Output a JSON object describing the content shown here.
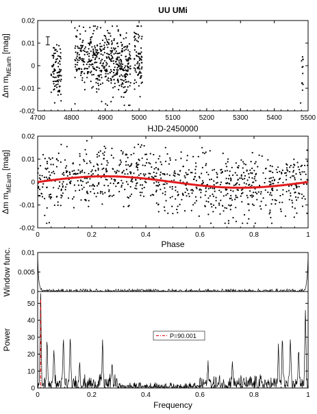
{
  "chart_data": [
    {
      "type": "scatter",
      "title": "UU UMi",
      "xlabel": "HJD-2450000",
      "ylabel": "Δm",
      "ylabel_sub": "MEarth",
      "ylabel_unit": "[mag]",
      "xlim": [
        4700,
        5500
      ],
      "ylim": [
        -0.02,
        0.02
      ],
      "x_ticks": [
        "4700",
        "4800",
        "4900",
        "5000",
        "5100",
        "5200",
        "5300",
        "5400",
        "5500"
      ],
      "y_ticks": [
        "0.02",
        "0.01",
        "0",
        "-0.01",
        "-0.02"
      ],
      "errorbar": {
        "x": 4730,
        "y": 0.011,
        "half_height": 0.0018
      },
      "point_groups": [
        {
          "x_range": [
            4740,
            4770
          ],
          "n": 90,
          "y_mean": -0.002,
          "y_sd": 0.006
        },
        {
          "x_range": [
            4810,
            4870
          ],
          "n": 150,
          "y_mean": 0.004,
          "y_sd": 0.006
        },
        {
          "x_range": [
            4870,
            4930
          ],
          "n": 170,
          "y_mean": 0.001,
          "y_sd": 0.007
        },
        {
          "x_range": [
            4930,
            4975
          ],
          "n": 160,
          "y_mean": -0.001,
          "y_sd": 0.007
        },
        {
          "x_range": [
            4985,
            5010
          ],
          "n": 80,
          "y_mean": 0.003,
          "y_sd": 0.007
        },
        {
          "x_range": [
            5478,
            5486
          ],
          "n": 12,
          "y_mean": -0.002,
          "y_sd": 0.008
        }
      ]
    },
    {
      "type": "scatter",
      "title": "",
      "xlabel": "Phase",
      "ylabel": "Δm",
      "ylabel_sub": "MEarth",
      "ylabel_unit": "[mag]",
      "xlim": [
        0,
        1
      ],
      "ylim": [
        -0.02,
        0.02
      ],
      "x_ticks": [
        "0",
        "0.2",
        "0.4",
        "0.6",
        "0.8",
        "1"
      ],
      "y_ticks": [
        "0.02",
        "0.01",
        "0",
        "-0.01",
        "-0.02"
      ],
      "n_points": 900,
      "y_sd": 0.0065,
      "fit": {
        "amplitude": 0.0025,
        "phase_of_max": 0.25,
        "color": "#e31a1c"
      }
    },
    {
      "type": "line",
      "title": "",
      "xlabel": "",
      "ylabel": "Window func.",
      "xlim": [
        0,
        1
      ],
      "ylim": [
        0,
        0.01
      ],
      "y_ticks": [
        "0.01",
        "0.005",
        "0"
      ],
      "edge_peak": 0.0085,
      "noise_level": 0.0003
    },
    {
      "type": "line",
      "title": "",
      "xlabel": "Frequency",
      "ylabel": "Power",
      "xlim": [
        0,
        1
      ],
      "ylim": [
        0,
        57
      ],
      "x_ticks": [
        "0",
        "0.2",
        "0.4",
        "0.6",
        "0.8",
        "1"
      ],
      "y_ticks": [
        "50",
        "40",
        "30",
        "20",
        "10",
        "0"
      ],
      "peaks": [
        {
          "x": 0.011,
          "y": 52
        },
        {
          "x": 0.035,
          "y": 24
        },
        {
          "x": 0.06,
          "y": 22
        },
        {
          "x": 0.095,
          "y": 26
        },
        {
          "x": 0.12,
          "y": 25
        },
        {
          "x": 0.24,
          "y": 25
        },
        {
          "x": 0.155,
          "y": 13
        },
        {
          "x": 0.275,
          "y": 13
        },
        {
          "x": 0.63,
          "y": 12
        },
        {
          "x": 0.72,
          "y": 14
        },
        {
          "x": 0.89,
          "y": 21
        },
        {
          "x": 0.905,
          "y": 27
        },
        {
          "x": 0.935,
          "y": 24
        },
        {
          "x": 0.965,
          "y": 22
        },
        {
          "x": 0.99,
          "y": 45
        }
      ],
      "marker_line": {
        "x": 0.0111,
        "color": "#e31a1c"
      },
      "legend": {
        "label": "P=90.001",
        "placement": "upper-center"
      }
    }
  ]
}
